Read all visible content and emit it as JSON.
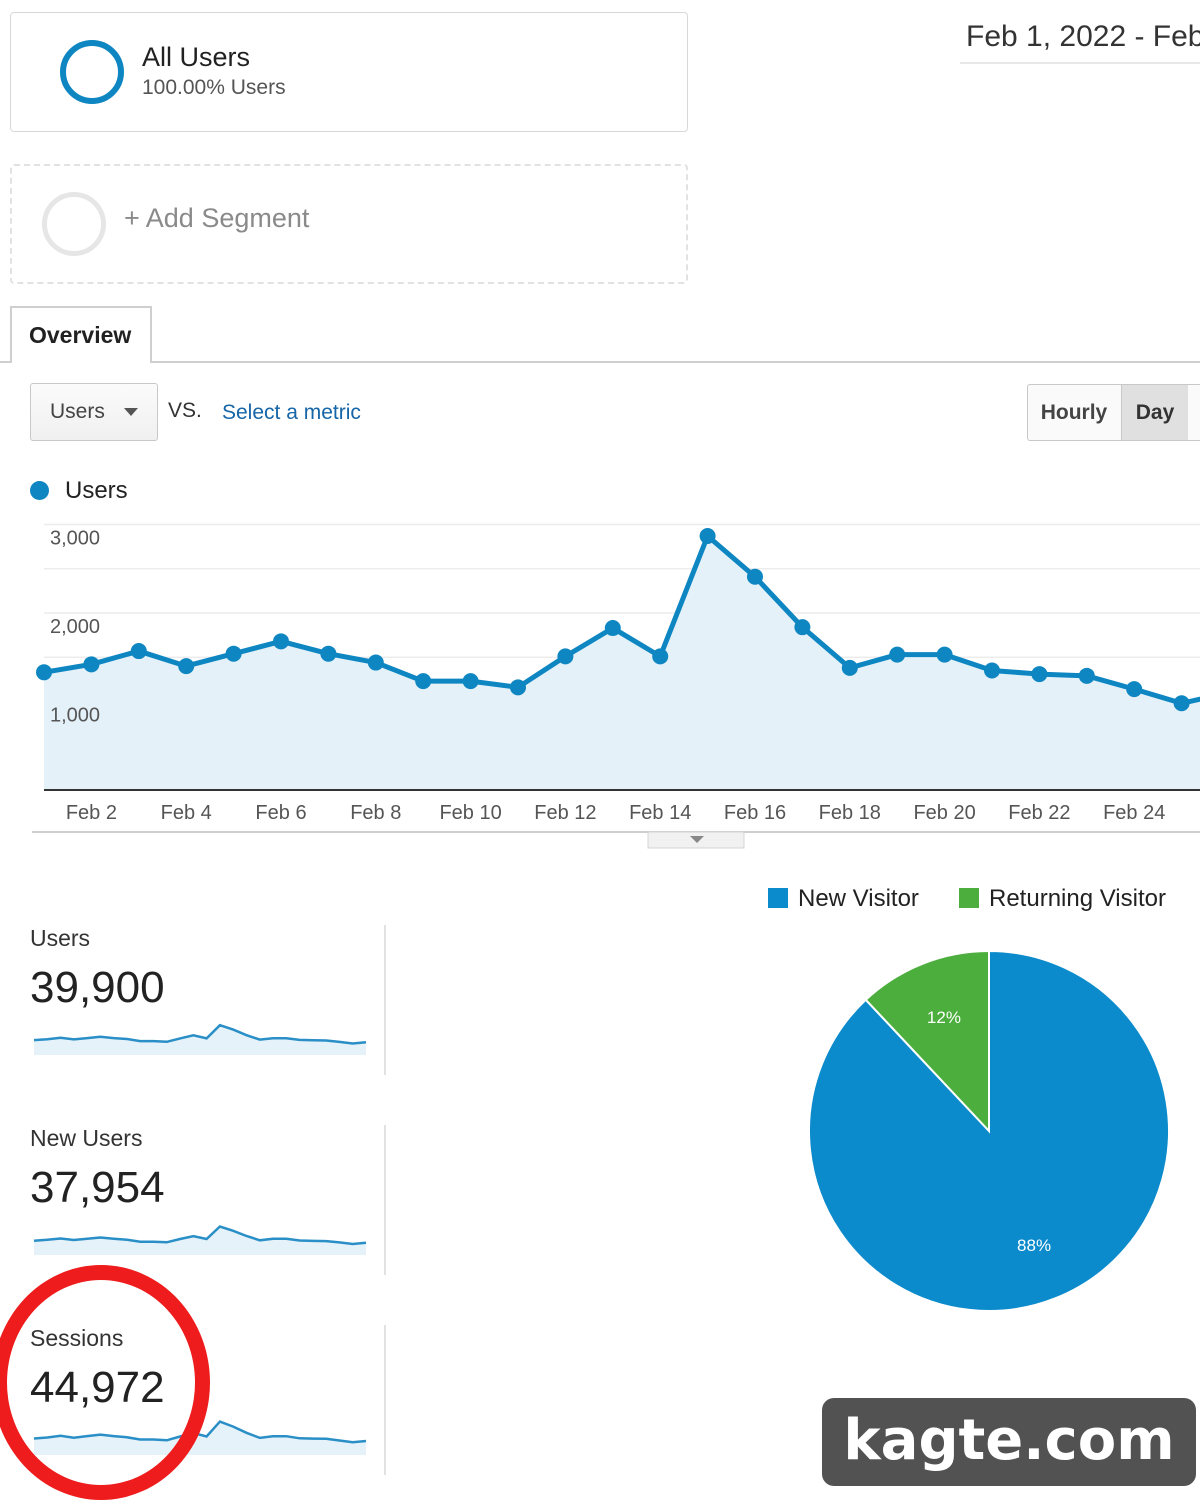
{
  "segments": {
    "all_users": {
      "title": "All Users",
      "subtitle": "100.00% Users"
    },
    "add_label": "+ Add Segment"
  },
  "date_range": "Feb 1, 2022 - Feb",
  "tabs": [
    {
      "label": "Overview"
    }
  ],
  "metric": {
    "selected": "Users",
    "vs": "VS.",
    "select_link": "Select a metric"
  },
  "granularity": {
    "hourly": "Hourly",
    "day": "Day"
  },
  "colors": {
    "accent": "#0e86c2",
    "fill": "#e4f1f8",
    "new_visitor": "#0b8bcb",
    "returning_visitor": "#4cae3c",
    "highlight": "#ee1c1c"
  },
  "chart_data": [
    {
      "type": "line",
      "series": [
        {
          "name": "Users",
          "values": [
            1330,
            1420,
            1570,
            1400,
            1540,
            1680,
            1540,
            1440,
            1230,
            1230,
            1160,
            1510,
            1830,
            1510,
            2870,
            2410,
            1840,
            1380,
            1530,
            1530,
            1350,
            1310,
            1290,
            1140,
            980,
            1100
          ]
        }
      ],
      "x": [
        "Feb 1",
        "Feb 2",
        "Feb 3",
        "Feb 4",
        "Feb 5",
        "Feb 6",
        "Feb 7",
        "Feb 8",
        "Feb 9",
        "Feb 10",
        "Feb 11",
        "Feb 12",
        "Feb 13",
        "Feb 14",
        "Feb 15",
        "Feb 16",
        "Feb 17",
        "Feb 18",
        "Feb 19",
        "Feb 20",
        "Feb 21",
        "Feb 22",
        "Feb 23",
        "Feb 24",
        "Feb 25",
        "Feb 26"
      ],
      "x_tick_labels": [
        "Feb 2",
        "Feb 4",
        "Feb 6",
        "Feb 8",
        "Feb 10",
        "Feb 12",
        "Feb 14",
        "Feb 16",
        "Feb 18",
        "Feb 20",
        "Feb 22",
        "Feb 24",
        "F"
      ],
      "y_tick_labels": [
        "3,000",
        "2,000",
        "1,000"
      ],
      "y_ticks": [
        3000,
        2000,
        1000
      ],
      "ylim": [
        0,
        3000
      ],
      "grid": true,
      "legend": "top-left"
    },
    {
      "type": "pie",
      "categories": [
        "New Visitor",
        "Returning Visitor"
      ],
      "values": [
        88,
        12
      ],
      "labels": [
        "88%",
        "12%"
      ],
      "legend": "top"
    }
  ],
  "scorecards": [
    {
      "label": "Users",
      "value": "39,900",
      "spark": [
        1330,
        1420,
        1570,
        1400,
        1540,
        1680,
        1540,
        1440,
        1230,
        1230,
        1160,
        1510,
        1830,
        1510,
        2870,
        2410,
        1840,
        1380,
        1530,
        1530,
        1350,
        1310,
        1290,
        1140,
        980,
        1100
      ]
    },
    {
      "label": "New Users",
      "value": "37,954",
      "spark": [
        1270,
        1360,
        1500,
        1340,
        1470,
        1600,
        1470,
        1370,
        1170,
        1170,
        1100,
        1440,
        1740,
        1440,
        2730,
        2290,
        1750,
        1310,
        1460,
        1460,
        1290,
        1250,
        1230,
        1090,
        930,
        1050
      ]
    },
    {
      "label": "Sessions",
      "value": "44,972",
      "spark": [
        1500,
        1600,
        1770,
        1580,
        1740,
        1900,
        1740,
        1620,
        1390,
        1390,
        1310,
        1700,
        2060,
        1700,
        3240,
        2720,
        2080,
        1560,
        1730,
        1730,
        1520,
        1480,
        1460,
        1290,
        1100,
        1240
      ]
    }
  ],
  "watermark": "kagte.com"
}
